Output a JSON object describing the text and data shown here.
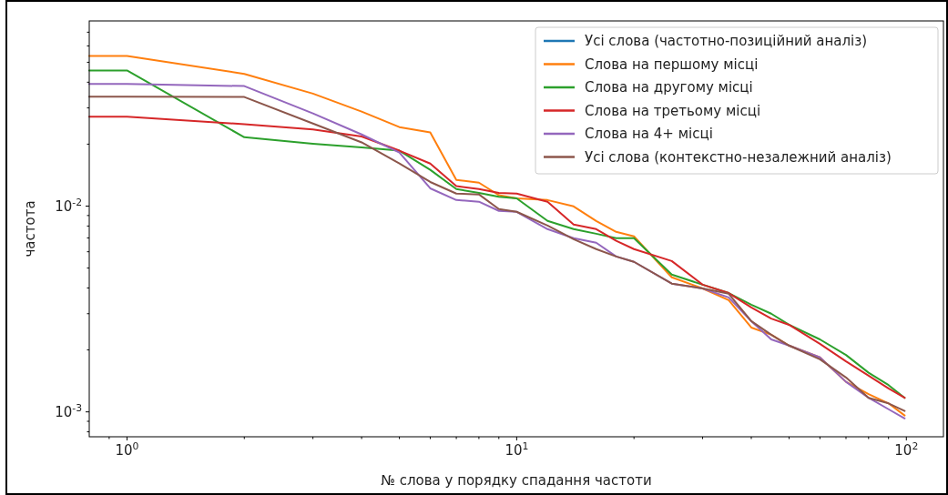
{
  "chart_data": {
    "type": "line",
    "xlabel": "№ слова у порядку спадання частоти",
    "ylabel": "частота",
    "log": "xy",
    "grid": false,
    "legend": "top right",
    "marker": "none",
    "line_style": "solid",
    "xlim": [
      0.8,
      124.5
    ],
    "ylim": [
      0.000757,
      0.0794
    ],
    "xticks": [
      {
        "value": 0.9,
        "label": null
      },
      {
        "value": 1,
        "label": "10$^{0}$"
      },
      {
        "value": 2,
        "label": null
      },
      {
        "value": 3,
        "label": null
      },
      {
        "value": 4,
        "label": null
      },
      {
        "value": 5,
        "label": null
      },
      {
        "value": 6,
        "label": null
      },
      {
        "value": 7,
        "label": null
      },
      {
        "value": 8,
        "label": null
      },
      {
        "value": 9,
        "label": null
      },
      {
        "value": 10,
        "label": "10$^{1}$"
      },
      {
        "value": 20,
        "label": null
      },
      {
        "value": 30,
        "label": null
      },
      {
        "value": 40,
        "label": null
      },
      {
        "value": 50,
        "label": null
      },
      {
        "value": 60,
        "label": null
      },
      {
        "value": 70,
        "label": null
      },
      {
        "value": 80,
        "label": null
      },
      {
        "value": 90,
        "label": null
      },
      {
        "value": 100,
        "label": "10$^{2}$"
      }
    ],
    "yticks": [
      {
        "value": 0.0008,
        "label": null
      },
      {
        "value": 0.0009,
        "label": null
      },
      {
        "value": 0.001,
        "label": "10$^{-3}$"
      },
      {
        "value": 0.002,
        "label": null
      },
      {
        "value": 0.003,
        "label": null
      },
      {
        "value": 0.004,
        "label": null
      },
      {
        "value": 0.005,
        "label": null
      },
      {
        "value": 0.006,
        "label": null
      },
      {
        "value": 0.007,
        "label": null
      },
      {
        "value": 0.008,
        "label": null
      },
      {
        "value": 0.009,
        "label": null
      },
      {
        "value": 0.01,
        "label": "10$^{-2}$"
      },
      {
        "value": 0.02,
        "label": null
      },
      {
        "value": 0.03,
        "label": null
      },
      {
        "value": 0.04,
        "label": null
      },
      {
        "value": 0.05,
        "label": null
      },
      {
        "value": 0.06,
        "label": null
      },
      {
        "value": 0.07,
        "label": null
      }
    ],
    "x": [
      0.8,
      1,
      2,
      3,
      4,
      5,
      6,
      7,
      8,
      9,
      10,
      12,
      14,
      16,
      18,
      20,
      25,
      30,
      35,
      40,
      45,
      50,
      60,
      70,
      80,
      90,
      99
    ],
    "series": [
      {
        "name": "Усі слова (частотно-позиційний аналіз)",
        "color": "#1f77b4",
        "values": [
          null,
          null,
          null,
          null,
          null,
          null,
          null,
          null,
          null,
          null,
          null,
          null,
          null,
          null,
          null,
          null,
          null,
          null,
          null,
          null,
          null,
          null,
          null,
          null,
          null,
          null,
          null
        ]
      },
      {
        "name": "Слова на першому місці",
        "color": "#ff7f0e",
        "values": [
          0.0537,
          0.0537,
          0.0439,
          0.0352,
          0.0288,
          0.0242,
          0.0228,
          0.0134,
          0.013,
          0.0113,
          0.0109,
          0.0107,
          0.00997,
          0.00847,
          0.0075,
          0.00713,
          0.00451,
          0.00398,
          0.00349,
          0.00257,
          0.00237,
          0.0021,
          0.00184,
          0.0014,
          0.00122,
          0.0011,
          0.00096
        ]
      },
      {
        "name": "Слова на другому місці",
        "color": "#2ca02c",
        "values": [
          0.0456,
          0.0456,
          0.0216,
          0.0201,
          0.0193,
          0.0186,
          0.015,
          0.0121,
          0.0116,
          0.0111,
          0.0109,
          0.00847,
          0.00773,
          0.00734,
          0.00698,
          0.00698,
          0.00465,
          0.00415,
          0.00378,
          0.00332,
          0.003,
          0.00265,
          0.00225,
          0.00189,
          0.00155,
          0.00135,
          0.00117
        ]
      },
      {
        "name": "Слова на третьому місці",
        "color": "#d62728",
        "values": [
          0.0272,
          0.0272,
          0.025,
          0.0236,
          0.0218,
          0.0186,
          0.0161,
          0.0125,
          0.0121,
          0.0116,
          0.0115,
          0.0105,
          0.00813,
          0.00773,
          0.00678,
          0.00618,
          0.00541,
          0.00415,
          0.00378,
          0.00322,
          0.00284,
          0.00265,
          0.00214,
          0.00176,
          0.0015,
          0.0013,
          0.00117
        ]
      },
      {
        "name": "Слова на 4+ місці",
        "color": "#9467bd",
        "values": [
          0.0392,
          0.0392,
          0.0383,
          0.0282,
          0.0223,
          0.0182,
          0.0122,
          0.0107,
          0.0105,
          0.00948,
          0.00938,
          0.00773,
          0.00698,
          0.00664,
          0.00569,
          0.00536,
          0.0042,
          0.00398,
          0.0036,
          0.00276,
          0.00225,
          0.0021,
          0.00184,
          0.0014,
          0.00117,
          0.00103,
          0.00093
        ]
      },
      {
        "name": "Усі слова (контекстно-незалежний аналіз)",
        "color": "#8c564b",
        "values": [
          0.034,
          0.034,
          0.0339,
          0.0252,
          0.0204,
          0.0161,
          0.0131,
          0.0115,
          0.0114,
          0.00967,
          0.00938,
          0.00805,
          0.00691,
          0.00618,
          0.00569,
          0.00536,
          0.0042,
          0.00398,
          0.00375,
          0.00276,
          0.00237,
          0.0021,
          0.0018,
          0.00147,
          0.00117,
          0.0011,
          0.00101
        ]
      }
    ]
  }
}
